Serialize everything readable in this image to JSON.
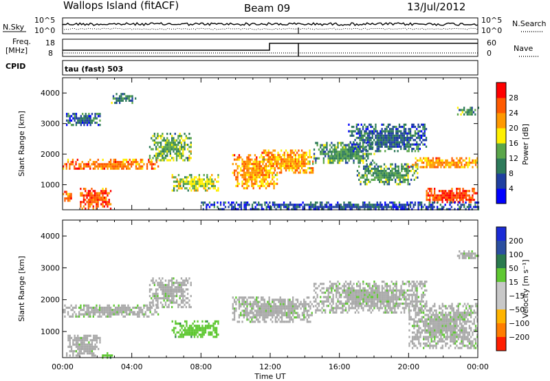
{
  "header": {
    "station": "Wallops Island (fitACF)",
    "beam": "Beam 09",
    "date": "13/Jul/2012"
  },
  "top_panels": {
    "nsky_label": "N.Sky",
    "nsearch_label": "N.Search",
    "noise_ticks": [
      "10^5",
      "10^0"
    ],
    "freq_label_1": "Freq.",
    "freq_label_2": "[MHz]",
    "freq_ticks": [
      "18",
      "8"
    ],
    "nave_label": "Nave",
    "nave_ticks": [
      "60",
      "0"
    ],
    "cpid_label": "CPID",
    "cpid_text": "tau (fast) 503"
  },
  "colors": {
    "power_scale": [
      "#0000ff",
      "#1f3fa0",
      "#2d7a5a",
      "#5aa64a",
      "#fff000",
      "#ff9900",
      "#ff5a00",
      "#ff0000"
    ],
    "velocity_scale": [
      "#1a2bd6",
      "#2b4fa0",
      "#2a7a4e",
      "#5fc832",
      "#c8c8c8",
      "#c8c8c8",
      "#ffb400",
      "#ff7d00",
      "#ff1e00"
    ],
    "ground_scatter": "#a9a9a9"
  },
  "chart_data": [
    {
      "type": "heatmap",
      "name": "power",
      "xlabel": "",
      "ylabel": "Slant Range [km]",
      "x_range_hours": [
        0,
        24
      ],
      "ylim": [
        180,
        4500
      ],
      "y_ticks": [
        1000,
        2000,
        3000,
        4000
      ],
      "colorbar": {
        "label": "Power [dB]",
        "range": [
          0,
          32
        ],
        "ticks": [
          4,
          8,
          12,
          16,
          20,
          24,
          28
        ]
      },
      "regions": [
        {
          "t0": 0.0,
          "t1": 5.5,
          "r0": 1500,
          "r1": 1850,
          "v": 24
        },
        {
          "t0": 5.0,
          "t1": 7.4,
          "r0": 1800,
          "r1": 2700,
          "v": 14
        },
        {
          "t0": 0.2,
          "t1": 2.2,
          "r0": 2950,
          "r1": 3350,
          "v": 8
        },
        {
          "t0": 2.8,
          "t1": 4.2,
          "r0": 3700,
          "r1": 4000,
          "v": 10
        },
        {
          "t0": 0.0,
          "t1": 0.5,
          "r0": 450,
          "r1": 800,
          "v": 24
        },
        {
          "t0": 1.0,
          "t1": 2.8,
          "r0": 250,
          "r1": 900,
          "v": 26
        },
        {
          "t0": 6.3,
          "t1": 9.0,
          "r0": 800,
          "r1": 1350,
          "v": 16
        },
        {
          "t0": 9.8,
          "t1": 12.4,
          "r0": 850,
          "r1": 2000,
          "v": 22
        },
        {
          "t0": 11.5,
          "t1": 14.5,
          "r0": 1400,
          "r1": 2150,
          "v": 22
        },
        {
          "t0": 14.5,
          "t1": 18.0,
          "r0": 1700,
          "r1": 2400,
          "v": 12
        },
        {
          "t0": 16.5,
          "t1": 21.0,
          "r0": 2100,
          "r1": 3000,
          "v": 8
        },
        {
          "t0": 17.0,
          "t1": 20.5,
          "r0": 1050,
          "r1": 1700,
          "v": 12
        },
        {
          "t0": 20.0,
          "t1": 24.0,
          "r0": 1550,
          "r1": 1900,
          "v": 22
        },
        {
          "t0": 21.0,
          "t1": 24.0,
          "r0": 400,
          "r1": 900,
          "v": 28
        },
        {
          "t0": 22.8,
          "t1": 24.0,
          "r0": 3300,
          "r1": 3550,
          "v": 12
        },
        {
          "t0": 8.0,
          "t1": 24.0,
          "r0": 200,
          "r1": 450,
          "v": 6
        }
      ]
    },
    {
      "type": "heatmap",
      "name": "velocity",
      "xlabel": "Time UT",
      "ylabel": "Slant Range [km]",
      "x_range_hours": [
        0,
        24
      ],
      "x_ticks": [
        "00:00",
        "04:00",
        "08:00",
        "12:00",
        "16:00",
        "20:00",
        "00:00"
      ],
      "ylim": [
        180,
        4500
      ],
      "y_ticks": [
        1000,
        2000,
        3000,
        4000
      ],
      "colorbar": {
        "label": "Velocity [m s⁻¹]",
        "ticks": [
          "200",
          "100",
          "50",
          "15",
          "−15",
          "−50",
          "−100",
          "−200"
        ]
      },
      "regions": [
        {
          "t0": 0.0,
          "t1": 5.5,
          "r0": 1500,
          "r1": 1850,
          "v": 0
        },
        {
          "t0": 5.0,
          "t1": 7.4,
          "r0": 1800,
          "r1": 2700,
          "v": 0
        },
        {
          "t0": 0.2,
          "t1": 2.2,
          "r0": 250,
          "r1": 900,
          "v": 0
        },
        {
          "t0": 6.3,
          "t1": 9.0,
          "r0": 800,
          "r1": 1350,
          "v": 40
        },
        {
          "t0": 9.8,
          "t1": 14.5,
          "r0": 1300,
          "r1": 2100,
          "v": 0
        },
        {
          "t0": 14.5,
          "t1": 21.0,
          "r0": 1600,
          "r1": 2600,
          "v": 0
        },
        {
          "t0": 20.0,
          "t1": 24.0,
          "r0": 500,
          "r1": 1900,
          "v": 0
        },
        {
          "t0": 22.8,
          "t1": 24.0,
          "r0": 3300,
          "r1": 3550,
          "v": 0
        },
        {
          "t0": 2.0,
          "t1": 3.0,
          "r0": 200,
          "r1": 350,
          "v": 40
        }
      ]
    }
  ]
}
